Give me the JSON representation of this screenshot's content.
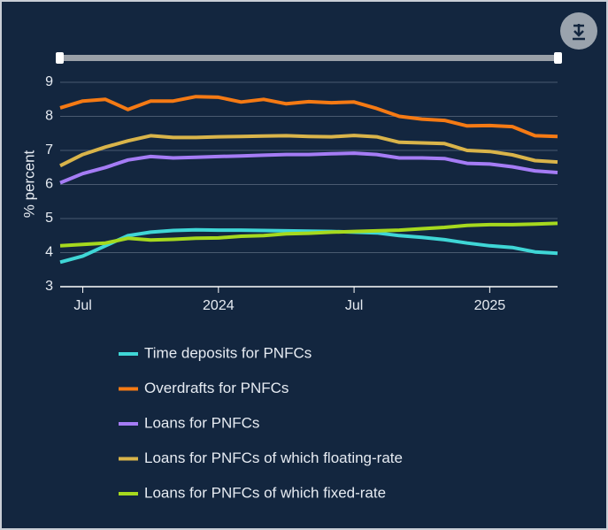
{
  "chart_data": {
    "type": "line",
    "y_label": "% percent",
    "x": [
      "2023-06",
      "2023-07",
      "2023-08",
      "2023-09",
      "2023-10",
      "2023-11",
      "2023-12",
      "2024-01",
      "2024-02",
      "2024-03",
      "2024-04",
      "2024-05",
      "2024-06",
      "2024-07",
      "2024-08",
      "2024-09",
      "2024-10",
      "2024-11",
      "2024-12",
      "2025-01",
      "2025-02",
      "2025-03",
      "2025-04"
    ],
    "xlim": [
      "2023-06",
      "2025-04"
    ],
    "xticks": [
      {
        "value": "2023-07",
        "label": "Jul"
      },
      {
        "value": "2024-01",
        "label": "2024"
      },
      {
        "value": "2024-07",
        "label": "Jul"
      },
      {
        "value": "2025-01",
        "label": "2025"
      }
    ],
    "ylim": [
      3,
      9
    ],
    "yticks": [
      3,
      4,
      5,
      6,
      7,
      8,
      9
    ],
    "grid": true,
    "series": [
      {
        "name": "Time deposits for PNFCs",
        "color": "#3fd6d6",
        "values": [
          3.72,
          3.9,
          4.2,
          4.5,
          4.6,
          4.65,
          4.67,
          4.66,
          4.66,
          4.65,
          4.64,
          4.63,
          4.62,
          4.6,
          4.58,
          4.5,
          4.45,
          4.38,
          4.28,
          4.2,
          4.15,
          4.02,
          3.98
        ]
      },
      {
        "name": "Overdrafts for PNFCs",
        "color": "#f57a14",
        "values": [
          8.25,
          8.45,
          8.5,
          8.2,
          8.45,
          8.45,
          8.58,
          8.56,
          8.42,
          8.5,
          8.37,
          8.43,
          8.4,
          8.42,
          8.23,
          8.0,
          7.92,
          7.88,
          7.72,
          7.73,
          7.7,
          7.43,
          7.41
        ]
      },
      {
        "name": "Loans for PNFCs",
        "color": "#a57cf5",
        "values": [
          6.05,
          6.32,
          6.5,
          6.72,
          6.82,
          6.78,
          6.8,
          6.82,
          6.84,
          6.86,
          6.88,
          6.88,
          6.9,
          6.92,
          6.88,
          6.78,
          6.78,
          6.76,
          6.62,
          6.6,
          6.52,
          6.4,
          6.35
        ]
      },
      {
        "name": "Loans for PNFCs of which floating-rate",
        "color": "#d9b44a",
        "values": [
          6.55,
          6.88,
          7.1,
          7.28,
          7.43,
          7.38,
          7.38,
          7.4,
          7.41,
          7.42,
          7.43,
          7.41,
          7.4,
          7.44,
          7.4,
          7.24,
          7.22,
          7.2,
          7.0,
          6.97,
          6.87,
          6.7,
          6.66
        ]
      },
      {
        "name": "Loans for PNFCs of which fixed-rate",
        "color": "#a6d91e",
        "values": [
          4.2,
          4.24,
          4.28,
          4.42,
          4.37,
          4.39,
          4.42,
          4.43,
          4.48,
          4.5,
          4.55,
          4.57,
          4.6,
          4.62,
          4.64,
          4.66,
          4.7,
          4.74,
          4.8,
          4.82,
          4.82,
          4.84,
          4.86
        ]
      }
    ]
  }
}
